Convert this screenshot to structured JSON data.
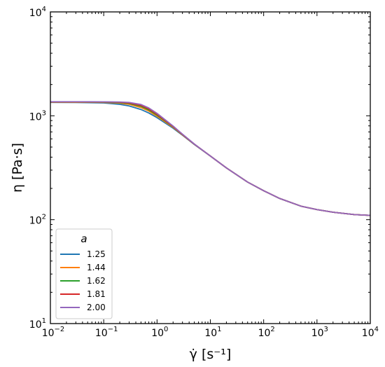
{
  "chart_data": {
    "type": "line",
    "xscale": "log",
    "yscale": "log",
    "xlim": [
      0.01,
      10000
    ],
    "ylim": [
      10,
      10000
    ],
    "xlabel": "γ̇ [s⁻¹]",
    "ylabel": "η [Pa·s]",
    "x_ticks": [
      {
        "value": 0.01,
        "base": "10",
        "exp": "−2"
      },
      {
        "value": 0.1,
        "base": "10",
        "exp": "−1"
      },
      {
        "value": 1,
        "base": "10",
        "exp": "0"
      },
      {
        "value": 10,
        "base": "10",
        "exp": "1"
      },
      {
        "value": 100,
        "base": "10",
        "exp": "2"
      },
      {
        "value": 1000,
        "base": "10",
        "exp": "3"
      },
      {
        "value": 10000,
        "base": "10",
        "exp": "4"
      }
    ],
    "y_ticks": [
      {
        "value": 10,
        "base": "10",
        "exp": "1"
      },
      {
        "value": 100,
        "base": "10",
        "exp": "2"
      },
      {
        "value": 1000,
        "base": "10",
        "exp": "3"
      },
      {
        "value": 10000,
        "base": "10",
        "exp": "4"
      }
    ],
    "legend": {
      "title": "a",
      "location": "lower-left"
    },
    "grid": false,
    "x": [
      0.01,
      0.03,
      0.1,
      0.2,
      0.3,
      0.5,
      0.7,
      1,
      2,
      3,
      5,
      7,
      10,
      20,
      50,
      100,
      200,
      500,
      1000,
      2000,
      5000,
      10000
    ],
    "series": [
      {
        "name": "1.25",
        "color": "#1f77b4",
        "values": [
          1345,
          1343,
          1330,
          1290,
          1245,
          1150,
          1065,
          960,
          760,
          650,
          530,
          468,
          410,
          315,
          230,
          190,
          160,
          135,
          125,
          118,
          112,
          110
        ]
      },
      {
        "name": "1.44",
        "color": "#ff7f0e",
        "values": [
          1350,
          1349,
          1345,
          1325,
          1290,
          1200,
          1110,
          990,
          775,
          655,
          532,
          469,
          410,
          315,
          230,
          190,
          160,
          135,
          125,
          118,
          112,
          110
        ]
      },
      {
        "name": "1.62",
        "color": "#2ca02c",
        "values": [
          1355,
          1355,
          1352,
          1340,
          1315,
          1235,
          1140,
          1015,
          785,
          660,
          533,
          469,
          410,
          315,
          230,
          190,
          160,
          135,
          125,
          118,
          112,
          110
        ]
      },
      {
        "name": "1.81",
        "color": "#d62728",
        "values": [
          1360,
          1360,
          1358,
          1350,
          1330,
          1260,
          1165,
          1035,
          790,
          662,
          534,
          470,
          410,
          315,
          230,
          190,
          160,
          135,
          125,
          118,
          112,
          110
        ]
      },
      {
        "name": "2.00",
        "color": "#9467bd",
        "values": [
          1365,
          1365,
          1364,
          1358,
          1345,
          1285,
          1190,
          1055,
          797,
          665,
          535,
          470,
          410,
          315,
          230,
          190,
          160,
          135,
          125,
          118,
          112,
          110
        ]
      }
    ]
  }
}
